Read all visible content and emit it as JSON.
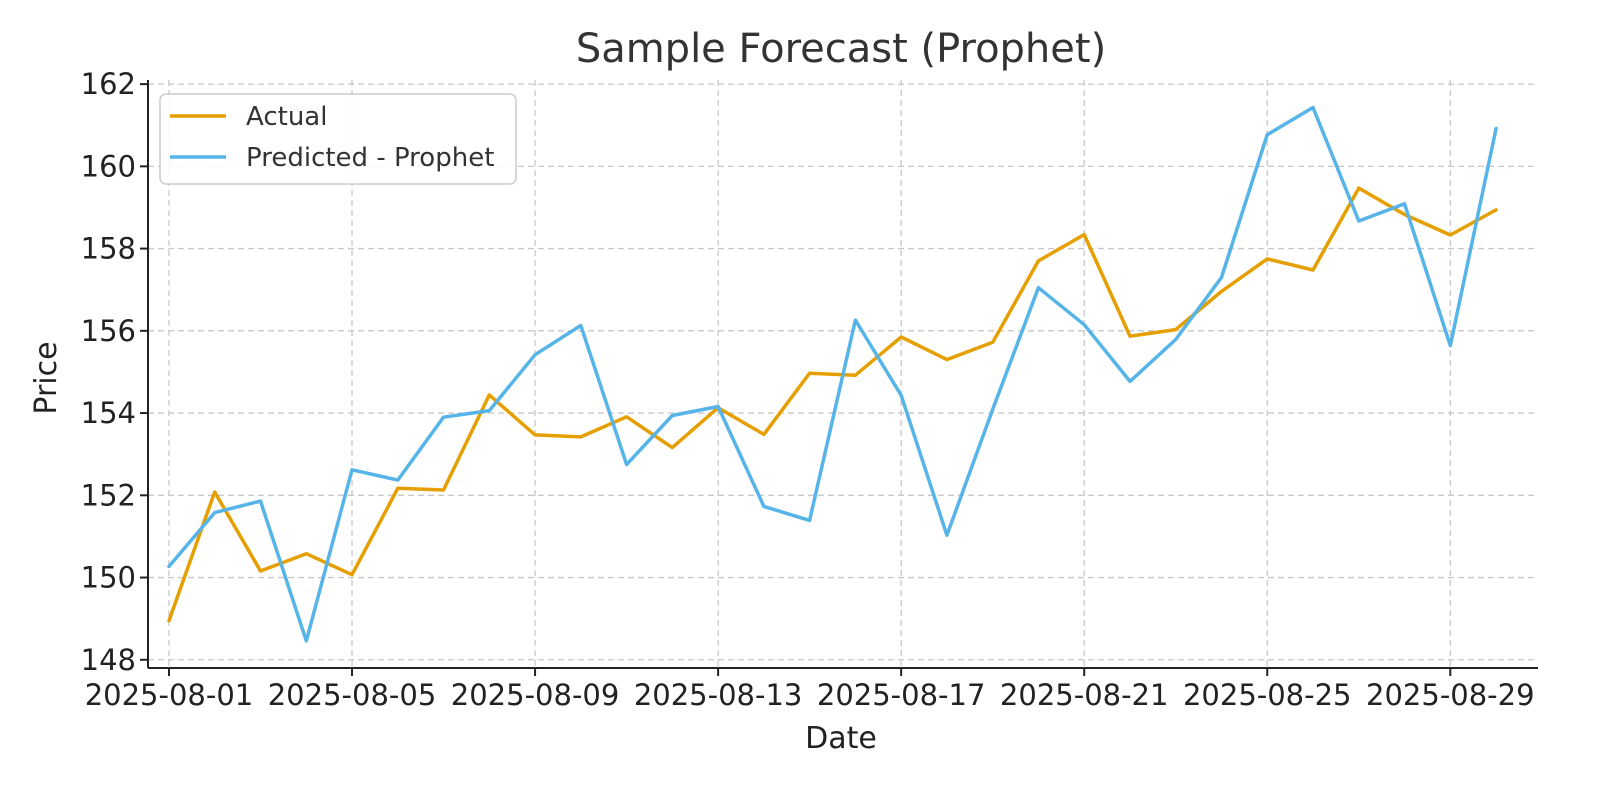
{
  "chart_data": {
    "type": "line",
    "title": "Sample Forecast (Prophet)",
    "xlabel": "Date",
    "ylabel": "Price",
    "x": [
      "2025-08-01",
      "2025-08-02",
      "2025-08-03",
      "2025-08-04",
      "2025-08-05",
      "2025-08-06",
      "2025-08-07",
      "2025-08-08",
      "2025-08-09",
      "2025-08-10",
      "2025-08-11",
      "2025-08-12",
      "2025-08-13",
      "2025-08-14",
      "2025-08-15",
      "2025-08-16",
      "2025-08-17",
      "2025-08-18",
      "2025-08-19",
      "2025-08-20",
      "2025-08-21",
      "2025-08-22",
      "2025-08-23",
      "2025-08-24",
      "2025-08-25",
      "2025-08-26",
      "2025-08-27",
      "2025-08-28",
      "2025-08-29",
      "2025-08-30"
    ],
    "x_ticks": [
      "2025-08-01",
      "2025-08-05",
      "2025-08-09",
      "2025-08-13",
      "2025-08-17",
      "2025-08-21",
      "2025-08-25",
      "2025-08-29"
    ],
    "y_ticks": [
      148,
      150,
      152,
      154,
      156,
      158,
      160,
      162
    ],
    "ylim": [
      147.8,
      162.1
    ],
    "xlim": [
      "2025-07-31T13:00",
      "2025-08-30T22:00"
    ],
    "grid": true,
    "legend_position": "top-left",
    "series": [
      {
        "name": "Actual",
        "color": "#E69F00",
        "values": [
          148.95,
          152.08,
          150.16,
          150.58,
          150.07,
          152.17,
          152.13,
          154.44,
          153.47,
          153.42,
          153.91,
          153.16,
          154.13,
          153.48,
          154.97,
          154.92,
          155.85,
          155.3,
          155.72,
          157.7,
          158.34,
          155.87,
          156.03,
          156.96,
          157.75,
          157.48,
          159.47,
          158.83,
          158.33,
          158.94
        ]
      },
      {
        "name": "Predicted - Prophet",
        "color": "#56B4E9",
        "values": [
          150.27,
          151.58,
          151.86,
          148.46,
          152.62,
          152.37,
          153.9,
          154.06,
          155.42,
          156.13,
          152.75,
          153.94,
          154.16,
          151.73,
          151.39,
          156.26,
          154.43,
          151.03,
          154.09,
          157.05,
          156.15,
          154.77,
          155.79,
          157.3,
          160.77,
          161.43,
          158.67,
          159.09,
          155.64,
          160.92
        ]
      }
    ]
  }
}
